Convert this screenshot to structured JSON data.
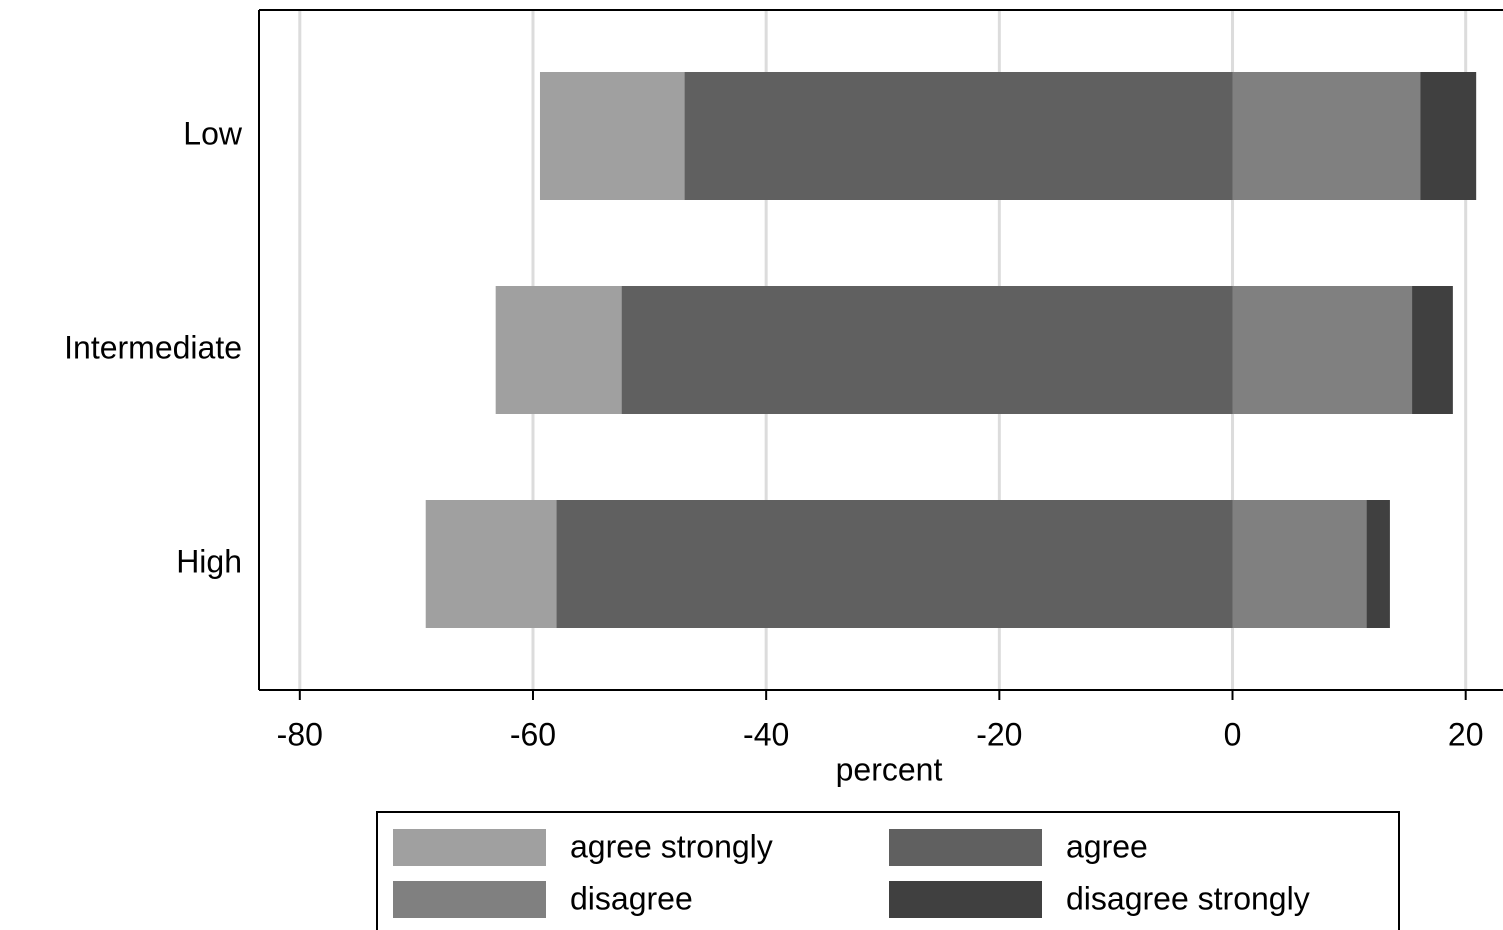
{
  "chart_data": {
    "type": "diverging-bar",
    "x_label": "percent",
    "categories": [
      "Low",
      "Intermediate",
      "High"
    ],
    "series": [
      {
        "name": "agree strongly",
        "color": "#a0a0a0",
        "values": [
          -12.4,
          -10.8,
          -11.2
        ]
      },
      {
        "name": "agree",
        "color": "#606060",
        "values": [
          -47.0,
          -52.4,
          -58.0
        ]
      },
      {
        "name": "disagree",
        "color": "#808080",
        "values": [
          16.1,
          15.4,
          11.5
        ]
      },
      {
        "name": "disagree strongly",
        "color": "#404040",
        "values": [
          4.8,
          3.5,
          2.0
        ]
      }
    ],
    "xlim": [
      -83.5,
      23.2
    ],
    "xticks": [
      -80,
      -60,
      -40,
      -20,
      0,
      20
    ],
    "grid": true
  }
}
